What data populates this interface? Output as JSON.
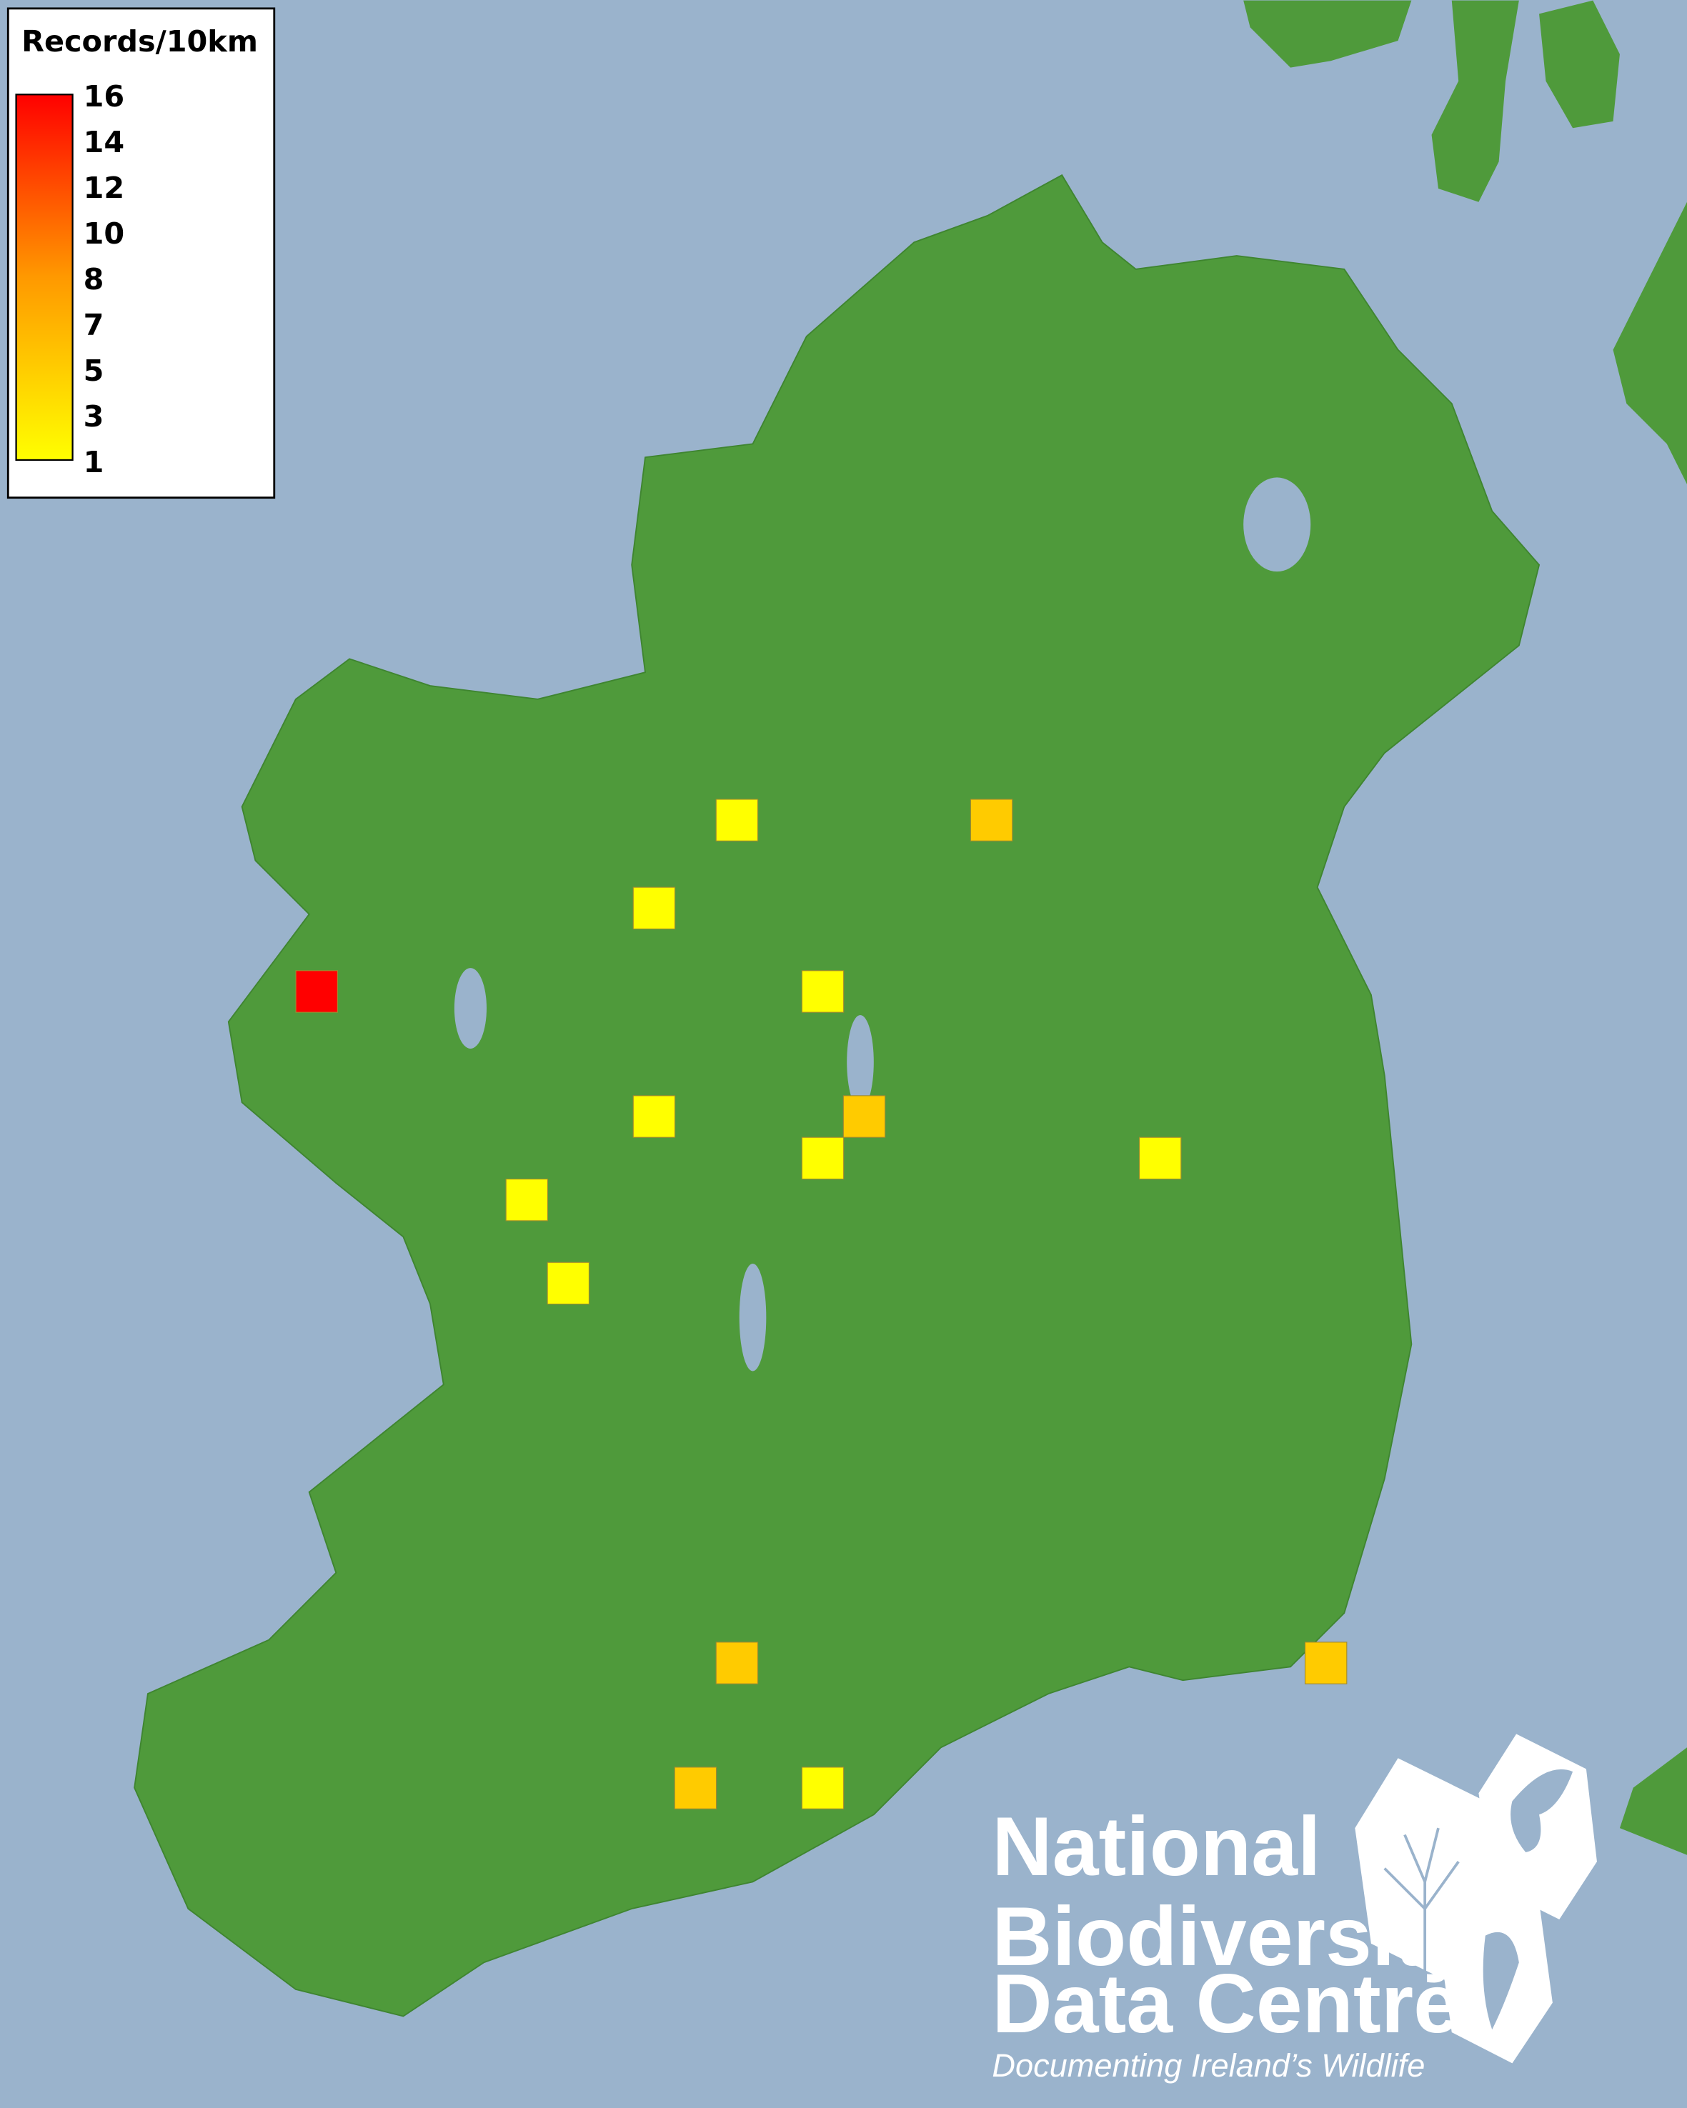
{
  "map": {
    "water_color": "#9ab3cc",
    "land_color": "#4f9a3b",
    "projection_note_visible": false
  },
  "legend": {
    "title": "Records/10km",
    "ticks": [
      "16",
      "14",
      "12",
      "10",
      "8",
      "7",
      "5",
      "3",
      "1"
    ],
    "min_color": "#ffff00",
    "max_color": "#ff0000",
    "range": [
      1,
      16
    ]
  },
  "records": [
    {
      "lon": -8.41,
      "lat": 53.98,
      "count": 1
    },
    {
      "lon": -7.55,
      "lat": 53.98,
      "count": 2
    },
    {
      "lon": -8.69,
      "lat": 53.79,
      "count": 1
    },
    {
      "lon": -9.83,
      "lat": 53.61,
      "count": 16
    },
    {
      "lon": -8.12,
      "lat": 53.61,
      "count": 1
    },
    {
      "lon": -8.69,
      "lat": 53.34,
      "count": 1
    },
    {
      "lon": -7.98,
      "lat": 53.34,
      "count": 2
    },
    {
      "lon": -8.12,
      "lat": 53.25,
      "count": 1
    },
    {
      "lon": -6.98,
      "lat": 53.25,
      "count": 1
    },
    {
      "lon": -9.12,
      "lat": 53.16,
      "count": 1
    },
    {
      "lon": -8.98,
      "lat": 52.98,
      "count": 1
    },
    {
      "lon": -8.41,
      "lat": 52.16,
      "count": 2
    },
    {
      "lon": -6.42,
      "lat": 52.16,
      "count": 2
    },
    {
      "lon": -8.55,
      "lat": 51.89,
      "count": 2
    },
    {
      "lon": -8.12,
      "lat": 51.89,
      "count": 1
    }
  ],
  "logo": {
    "line1": "National",
    "line2": "Biodiversity",
    "line3": "Data Centre",
    "tagline": "Documenting Ireland’s Wildlife",
    "icons": [
      "tree-icon",
      "butterfly-icon",
      "seahorse-icon"
    ]
  }
}
